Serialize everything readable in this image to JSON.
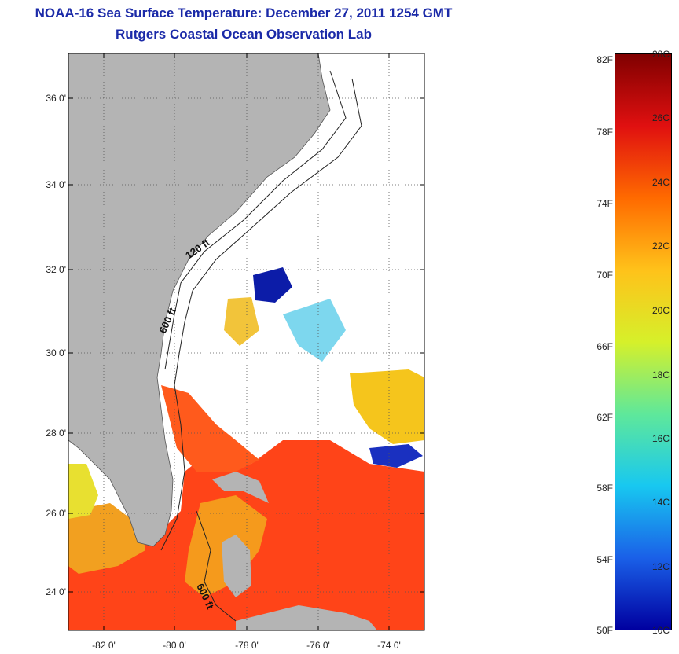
{
  "header": {
    "title": "NOAA-16 Sea Surface Temperature:  December 27, 2011 1254 GMT",
    "subtitle": "Rutgers Coastal Ocean Observation Lab"
  },
  "map": {
    "lat_labels": [
      "36 0'",
      "34 0'",
      "32 0'",
      "30 0'",
      "28 0'",
      "26 0'",
      "24 0'"
    ],
    "lon_labels": [
      "-82 0'",
      "-80 0'",
      "-78 0'",
      "-76 0'",
      "-74 0'"
    ],
    "isobath_labels": [
      "120 ft",
      "600 ft",
      "600 ft"
    ],
    "colors": {
      "land": "#b4b4b4",
      "cloud": "#ffffff",
      "warm": "#ff3b14",
      "orange": "#f59a1c",
      "yellow": "#f5d21a",
      "cold": "#0a1aa0"
    }
  },
  "colorbar": {
    "fahrenheit": [
      "82F",
      "78F",
      "74F",
      "70F",
      "66F",
      "62F",
      "58F",
      "54F",
      "50F"
    ],
    "celsius": [
      "28C",
      "26C",
      "24C",
      "22C",
      "20C",
      "18C",
      "16C",
      "14C",
      "12C",
      "10C"
    ],
    "gradient": [
      "#800000",
      "#e01010",
      "#ff6a00",
      "#ffc21a",
      "#d6f02a",
      "#5fe89a",
      "#18c8f0",
      "#1a60e8",
      "#0000a0"
    ]
  }
}
